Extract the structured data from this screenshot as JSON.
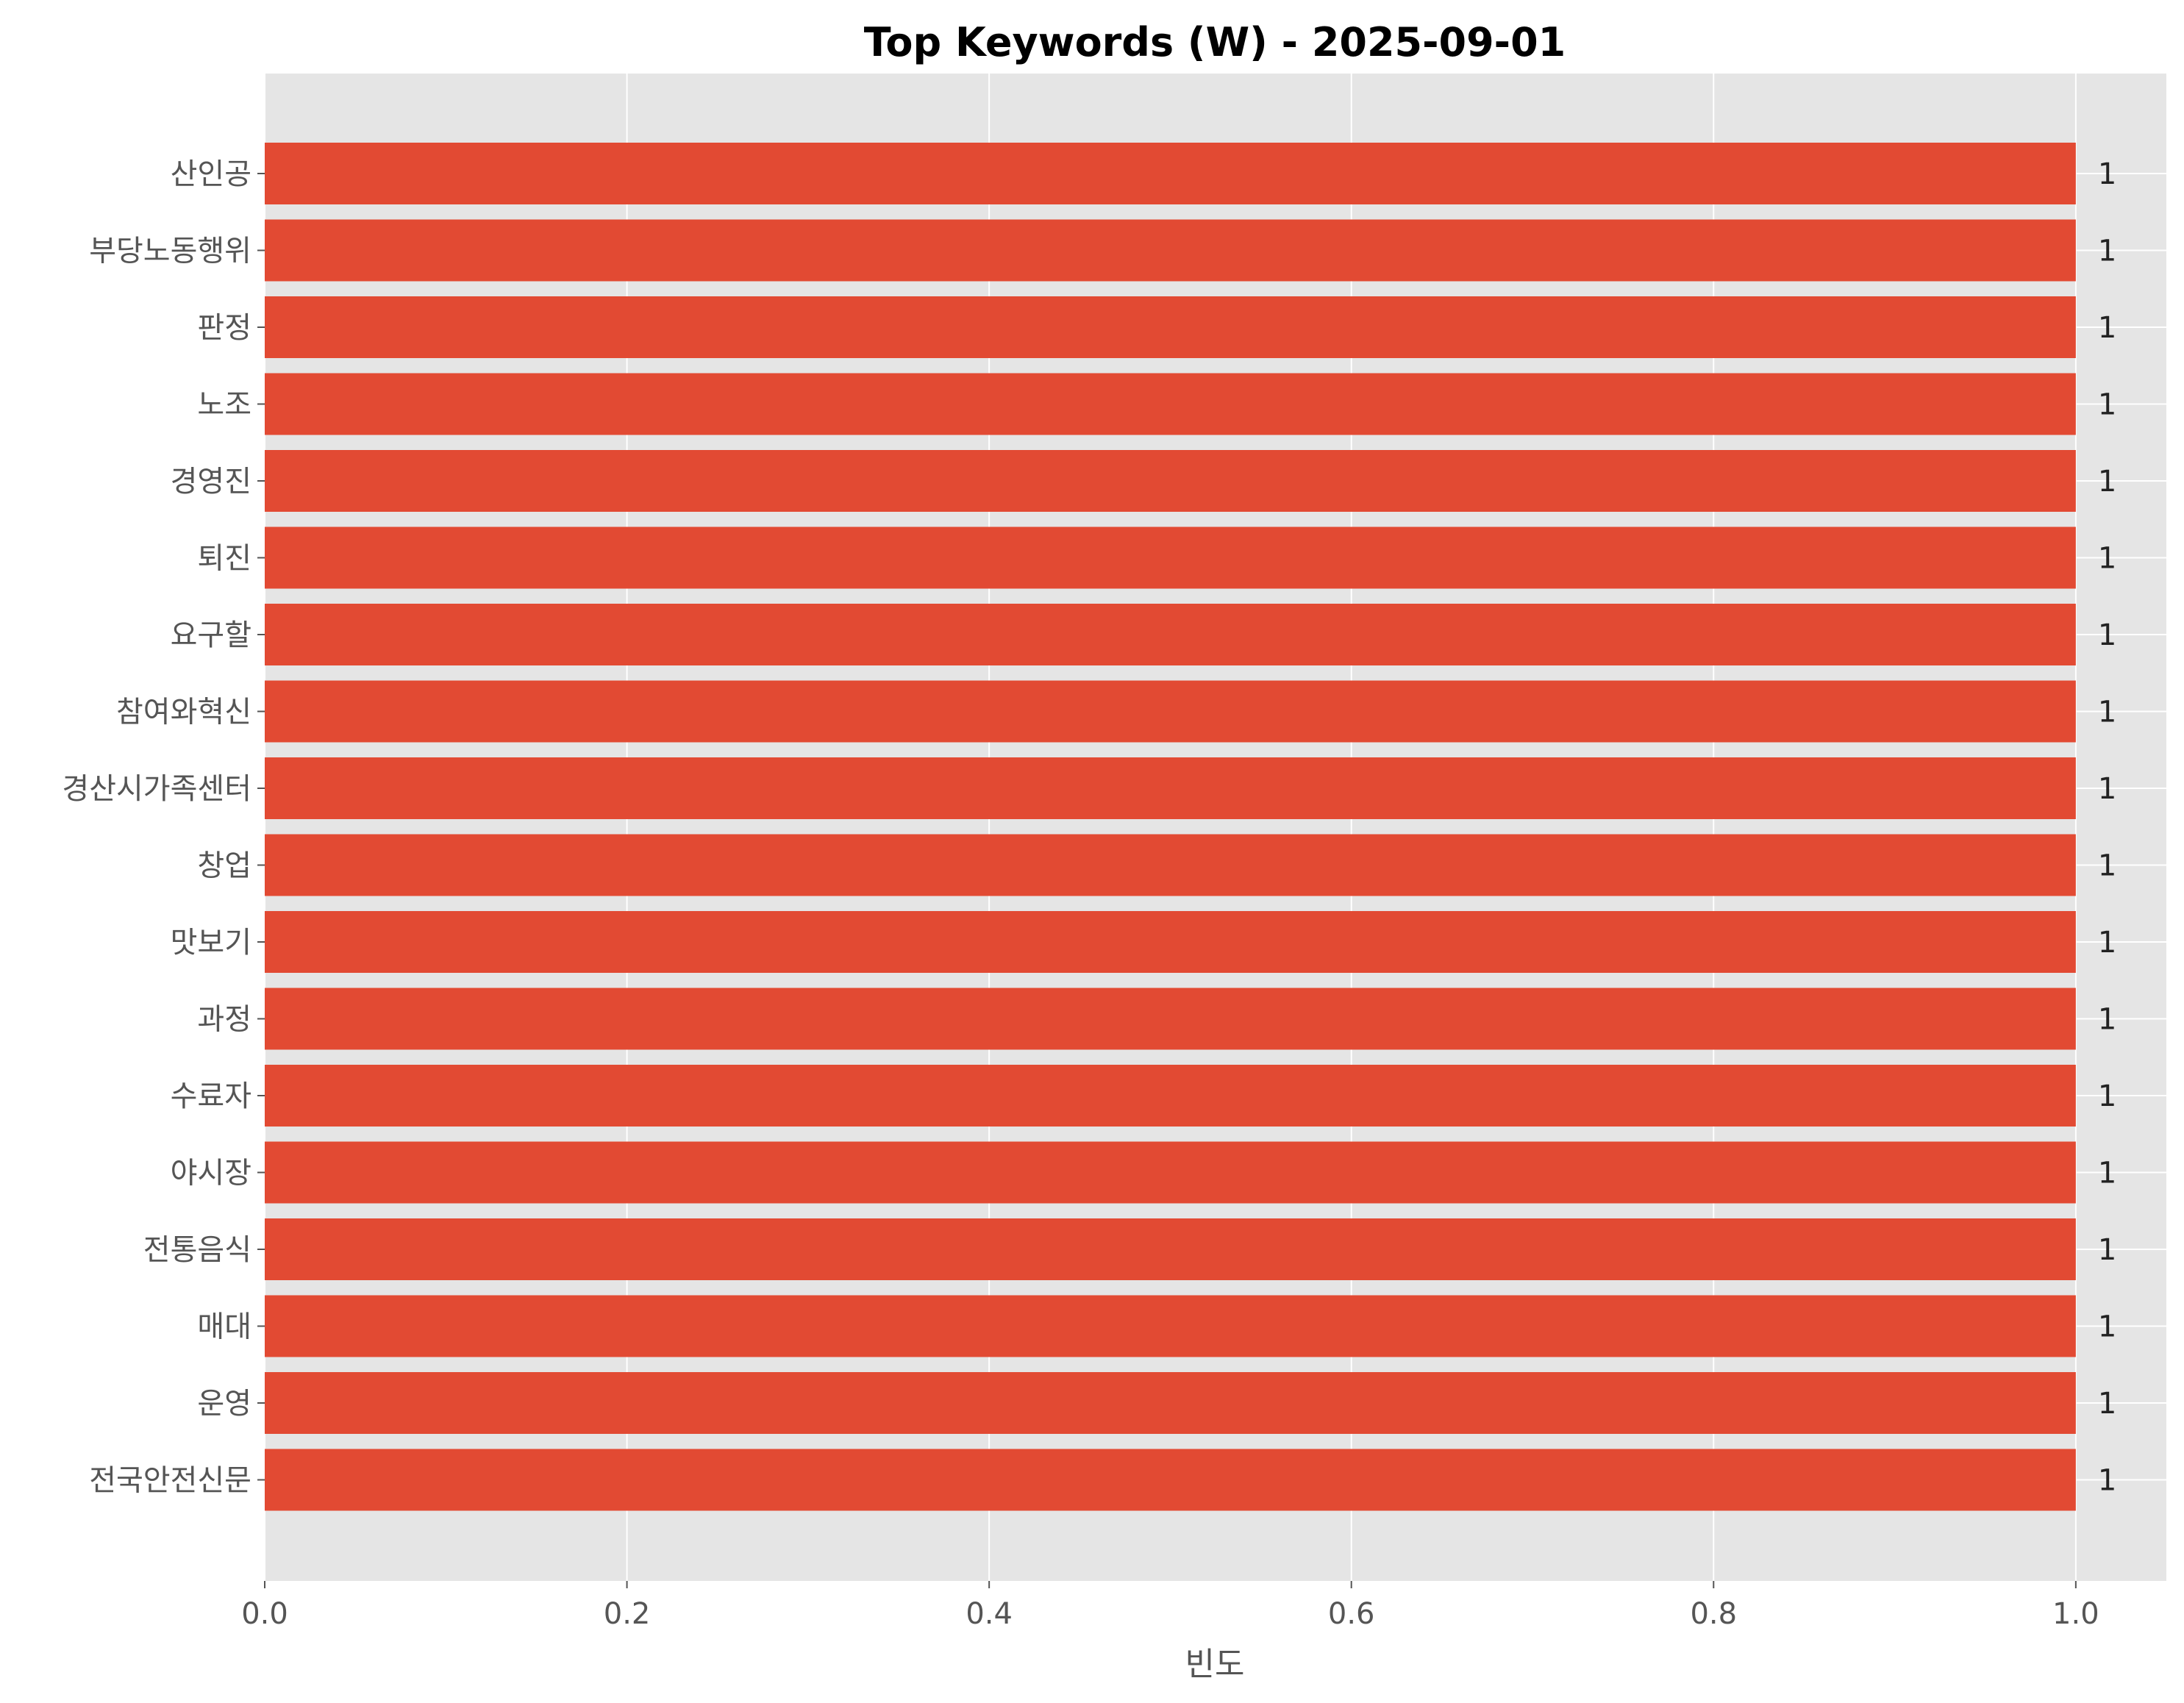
{
  "chart_data": {
    "type": "bar",
    "orientation": "horizontal",
    "title": "Top Keywords (W) - 2025-09-01",
    "xlabel": "빈도",
    "ylabel": "",
    "xlim": [
      0,
      1.05
    ],
    "x_ticks": [
      "0.0",
      "0.2",
      "0.4",
      "0.6",
      "0.8",
      "1.0"
    ],
    "x_tick_values": [
      0,
      0.2,
      0.4,
      0.6,
      0.8,
      1.0
    ],
    "grid": true,
    "bar_color": "#E24A33",
    "background_color": "#E5E5E5",
    "categories": [
      "산인공",
      "부당노동행위",
      "판정",
      "노조",
      "경영진",
      "퇴진",
      "요구할",
      "참여와혁신",
      "경산시가족센터",
      "창업",
      "맛보기",
      "과정",
      "수료자",
      "야시장",
      "전통음식",
      "매대",
      "운영",
      "전국안전신문"
    ],
    "values": [
      1,
      1,
      1,
      1,
      1,
      1,
      1,
      1,
      1,
      1,
      1,
      1,
      1,
      1,
      1,
      1,
      1,
      1
    ],
    "value_labels": [
      "1",
      "1",
      "1",
      "1",
      "1",
      "1",
      "1",
      "1",
      "1",
      "1",
      "1",
      "1",
      "1",
      "1",
      "1",
      "1",
      "1",
      "1"
    ]
  }
}
